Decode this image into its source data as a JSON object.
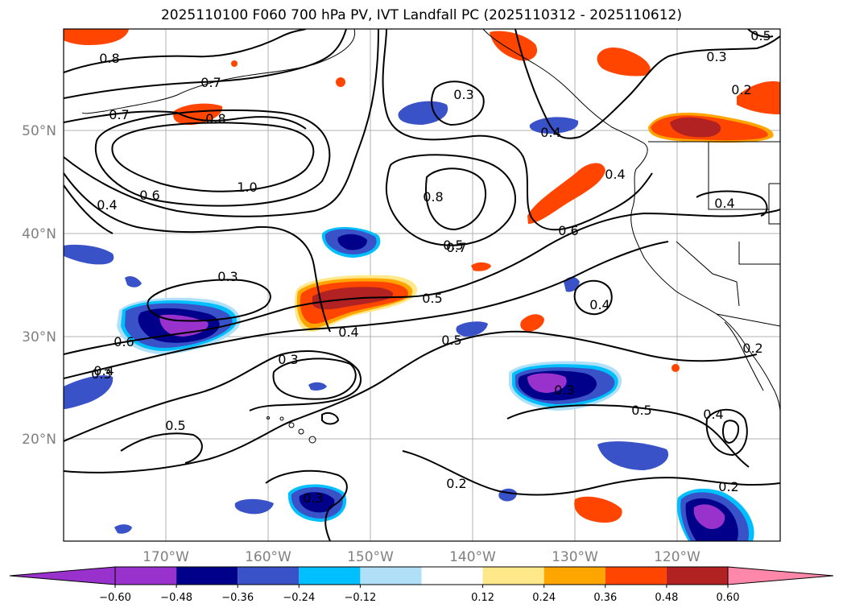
{
  "title": "2025110100 F060 700 hPa PV, IVT Landfall PC (2025110312 - 2025110612)",
  "lat_labels": [
    "50°N",
    "40°N",
    "30°N",
    "20°N"
  ],
  "lon_labels": [
    "170°W",
    "160°W",
    "150°W",
    "140°W",
    "130°W",
    "120°W"
  ],
  "colorbar": {
    "ticks": [
      "−0.60",
      "−0.48",
      "−0.36",
      "−0.24",
      "−0.12",
      "0.12",
      "0.24",
      "0.36",
      "0.48",
      "0.60"
    ],
    "colors": [
      "#9932cc",
      "#00008b",
      "#3a52c8",
      "#00bfff",
      "#b0e0f8",
      "#ffffff",
      "#ffe88a",
      "#ffa500",
      "#ff4500",
      "#b22222"
    ],
    "under_color": "#9932cc",
    "over_color": "#ff88aa"
  },
  "contour_labels": [
    "0.8",
    "0.7",
    "0.7",
    "0.8",
    "1.0",
    "0.6",
    "0.4",
    "0.3",
    "0.8",
    "0.7",
    "0.5",
    "0.6",
    "0.3",
    "0.4",
    "0.4",
    "0.4",
    "0.4",
    "0.5",
    "0.6",
    "0.4",
    "0.5",
    "0.3",
    "0.3",
    "0.5",
    "0.3",
    "0.2",
    "0.2",
    "0.4",
    "0.2",
    "0.2",
    "0.4",
    "0.5",
    "0.3",
    "0.5",
    "0.3"
  ]
}
